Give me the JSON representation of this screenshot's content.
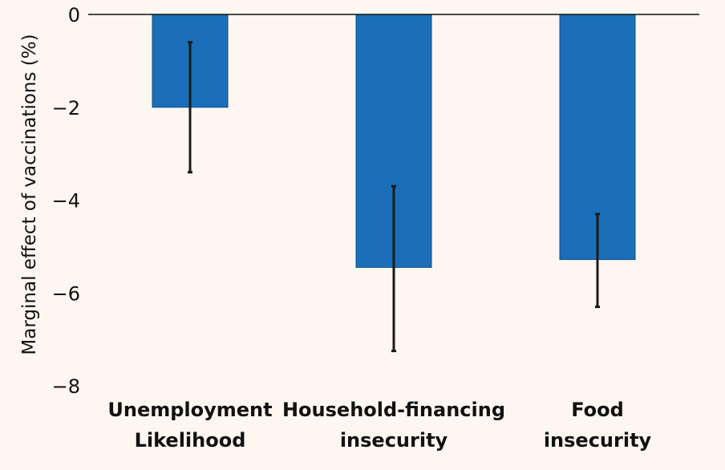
{
  "chart_data": {
    "type": "bar",
    "title": "",
    "xlabel": "",
    "ylabel": "Marginal effect of vaccinations (%)",
    "categories": [
      [
        "Unemployment",
        "Likelihood"
      ],
      [
        "Household-financing",
        "insecurity"
      ],
      [
        "Food",
        "insecurity"
      ]
    ],
    "values": [
      -2.0,
      -5.45,
      -5.28
    ],
    "error_low": [
      -3.4,
      -7.25,
      -6.3
    ],
    "error_high": [
      -0.6,
      -3.7,
      -4.3
    ],
    "ylim": [
      -8,
      0
    ],
    "yticks": [
      0,
      -2,
      -4,
      -6,
      -8
    ],
    "ytick_labels": [
      "0",
      "−2",
      "−4",
      "−6",
      "−8"
    ],
    "grid": false,
    "bar_color": "#1a6fb8",
    "error_color": "#1a1a1a"
  }
}
